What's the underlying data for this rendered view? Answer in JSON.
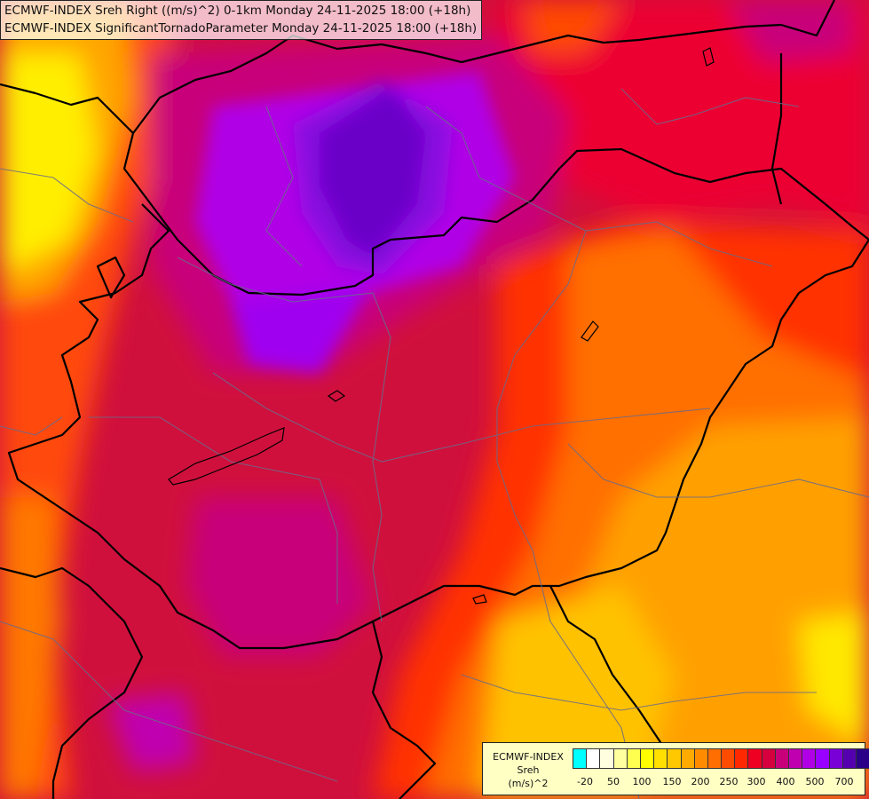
{
  "titles": [
    "ECMWF-INDEX Sreh Right ((m/s)^2) 0-1km Monday 24-11-2025 18:00 (+18h)",
    "ECMWF-INDEX SignificantTornadoParameter Monday 24-11-2025 18:00 (+18h)"
  ],
  "legend": {
    "line1": "ECMWF-INDEX",
    "line2": "Sreh",
    "line3": "(m/s)^2",
    "swatch_colors": [
      "#00ffff",
      "#ffffff",
      "#ffffe0",
      "#ffffa0",
      "#ffff50",
      "#ffff00",
      "#ffe000",
      "#ffc800",
      "#ffaa00",
      "#ff8c00",
      "#ff6e00",
      "#ff4b00",
      "#ff2800",
      "#ee0022",
      "#d6003f",
      "#c8007a",
      "#c000b0",
      "#b000e6",
      "#9900ff",
      "#7a00d8",
      "#5500b0",
      "#2a0088",
      "#000078"
    ],
    "tick_labels": [
      "-20",
      "50",
      "100",
      "150",
      "200",
      "250",
      "300",
      "400",
      "500",
      "700"
    ]
  },
  "colors": {
    "background": "#d0103c"
  }
}
